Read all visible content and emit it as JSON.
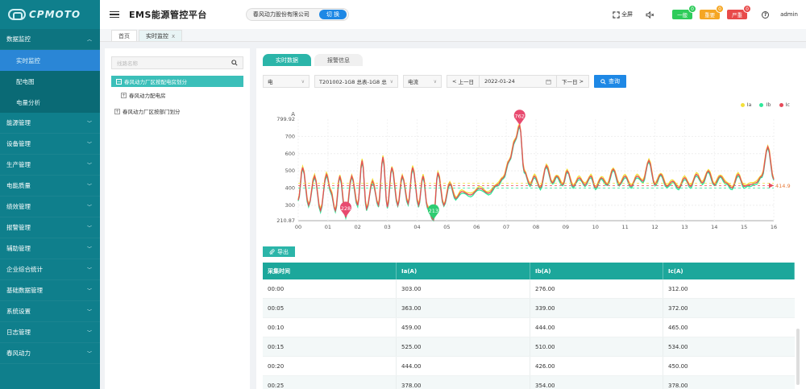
{
  "logo": {
    "text": "CPMOTO"
  },
  "sidebar": {
    "items": [
      {
        "label": "数据监控",
        "open": true,
        "children": [
          {
            "label": "实时监控",
            "active": true
          },
          {
            "label": "配电图",
            "active": false
          },
          {
            "label": "电量分析",
            "active": false
          }
        ]
      },
      {
        "label": "能源管理"
      },
      {
        "label": "设备管理"
      },
      {
        "label": "生产管理"
      },
      {
        "label": "电能质量"
      },
      {
        "label": "绩效管理"
      },
      {
        "label": "报警管理"
      },
      {
        "label": "辅助管理"
      },
      {
        "label": "企业综合统计"
      },
      {
        "label": "基础数据管理"
      },
      {
        "label": "系统设置"
      },
      {
        "label": "日志管理"
      },
      {
        "label": "春风动力"
      }
    ]
  },
  "header": {
    "title": "EMS能源管控平台",
    "company": "春风动力股份有限公司",
    "switch_label": "切 换",
    "fullscreen_label": "全屏",
    "alarms": [
      {
        "label": "一般",
        "count": "0",
        "color": "#2ecc5a"
      },
      {
        "label": "重要",
        "count": "0",
        "color": "#f5a623"
      },
      {
        "label": "严重",
        "count": "0",
        "color": "#e84a4a"
      }
    ],
    "user": "admin"
  },
  "tabs": [
    {
      "label": "首页",
      "active": false
    },
    {
      "label": "实时监控",
      "active": true,
      "close": "x"
    }
  ],
  "tree": {
    "search_placeholder": "线路名称",
    "nodes": {
      "root1": "春风动力厂区按配电房划分",
      "child1": "春风动力配电房",
      "root2": "春风动力厂区按部门划分"
    }
  },
  "inner_tabs": [
    {
      "label": "实时数据",
      "active": true
    },
    {
      "label": "报警信息",
      "active": false
    }
  ],
  "filters": {
    "type": "电",
    "meter": "T201002-1G8 总表-1G8 总表",
    "param": "电流",
    "prev_day": "上一日",
    "date": "2022-01-24",
    "next_day": "下一日",
    "query": "查询"
  },
  "chart_data": {
    "type": "line",
    "ylabel": "A",
    "ylim": [
      210.87,
      799.92
    ],
    "y_ticks": [
      "799.92",
      "700",
      "600",
      "500",
      "400",
      "300",
      "210.87"
    ],
    "x_ticks": [
      "00",
      "01",
      "02",
      "03",
      "04",
      "05",
      "06",
      "07",
      "08",
      "09",
      "10",
      "11",
      "12",
      "13",
      "14",
      "15",
      "16"
    ],
    "markers": [
      {
        "label": "762",
        "x": 7.45,
        "y": 762,
        "color": "#e84a6f"
      },
      {
        "label": "228",
        "x": 1.6,
        "y": 228,
        "color": "#e84a6f"
      },
      {
        "label": "213",
        "x": 4.55,
        "y": 213,
        "color": "#2ecc71"
      }
    ],
    "avg_label": "414.9",
    "avg_value": 414.9,
    "series": [
      {
        "name": "Ia",
        "color": "#f3e03a"
      },
      {
        "name": "Ib",
        "color": "#2ee89a"
      },
      {
        "name": "Ic",
        "color": "#e64a5a"
      }
    ]
  },
  "export_label": "导出",
  "table": {
    "headers": [
      "采集时间",
      "Ia(A)",
      "Ib(A)",
      "Ic(A)"
    ],
    "rows": [
      [
        "00:00",
        "303.00",
        "276.00",
        "312.00"
      ],
      [
        "00:05",
        "363.00",
        "339.00",
        "372.00"
      ],
      [
        "00:10",
        "459.00",
        "444.00",
        "465.00"
      ],
      [
        "00:15",
        "525.00",
        "510.00",
        "534.00"
      ],
      [
        "00:20",
        "444.00",
        "426.00",
        "450.00"
      ],
      [
        "00:25",
        "378.00",
        "354.00",
        "378.00"
      ]
    ]
  }
}
